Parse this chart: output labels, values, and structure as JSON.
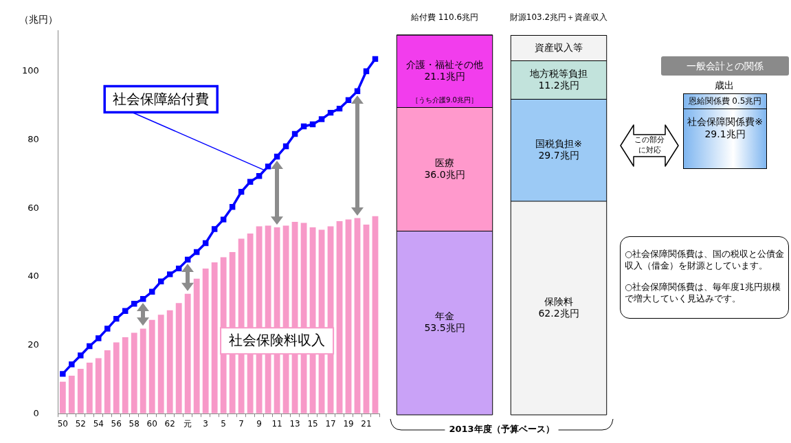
{
  "chart_data": [
    {
      "type": "bar",
      "ylabel": "（兆円）",
      "categories": [
        "50",
        null,
        "52",
        null,
        "54",
        null,
        "56",
        null,
        "58",
        null,
        "60",
        null,
        "62",
        null,
        "元",
        null,
        "3",
        null,
        "5",
        null,
        "7",
        null,
        "9",
        null,
        "11",
        null,
        "13",
        null,
        "15",
        null,
        "17",
        null,
        "19",
        null,
        "21",
        null
      ],
      "series": [
        {
          "name": "社会保険料収入",
          "type": "bar",
          "color": "#f799c8",
          "values": [
            9.3,
            11.1,
            13.1,
            14.9,
            16.2,
            18.5,
            20.8,
            22.3,
            23.6,
            24.8,
            27.4,
            28.9,
            30.2,
            32.3,
            35.0,
            39.4,
            42.4,
            44.2,
            45.7,
            47.2,
            51.1,
            52.6,
            54.7,
            54.9,
            54.4,
            54.9,
            56.0,
            55.7,
            54.4,
            53.7,
            54.7,
            56.2,
            56.7,
            57.1,
            55.2,
            57.7
          ]
        },
        {
          "name": "社会保障給付費",
          "type": "line",
          "color": "#0000ff",
          "values": [
            11.6,
            14.4,
            17.0,
            19.7,
            22.0,
            24.8,
            27.7,
            30.0,
            32.1,
            33.5,
            35.6,
            38.6,
            40.7,
            42.4,
            45.0,
            47.2,
            49.8,
            53.9,
            56.7,
            60.4,
            64.8,
            67.7,
            69.4,
            72.2,
            75.1,
            78.1,
            81.7,
            83.9,
            84.5,
            86.0,
            87.9,
            89.1,
            91.6,
            94.2,
            100.0,
            103.6
          ]
        }
      ],
      "ylim": [
        0,
        112
      ],
      "yticks": [
        0,
        20,
        40,
        60,
        80,
        100
      ],
      "marker": "square",
      "grid": false,
      "legend": false
    },
    {
      "type": "bar",
      "stacked": true,
      "categories": [
        "給付費 110.6兆円",
        "財源103.2兆円＋資産収入"
      ],
      "xlabel": "2013年度（予算ベース）",
      "series": [
        {
          "name": "年金",
          "color": "#c9a2f7",
          "values": [
            53.5,
            null
          ],
          "value_labels": [
            "53.5兆円",
            null
          ]
        },
        {
          "name": "医療",
          "color": "#ff99cc",
          "values": [
            36.0,
            null
          ],
          "value_labels": [
            "36.0兆円",
            null
          ]
        },
        {
          "name": "介護・福祉その他",
          "color": "#f23ded",
          "values": [
            21.1,
            null
          ],
          "value_labels": [
            "21.1兆円",
            null
          ]
        },
        {
          "name": "保険料",
          "color": "#f3f3f3",
          "values": [
            null,
            62.2
          ],
          "value_labels": [
            null,
            "62.2兆円"
          ]
        },
        {
          "name": "国税負担※",
          "color": "#9ccaf5",
          "values": [
            null,
            29.7
          ],
          "value_labels": [
            null,
            "29.7兆円"
          ]
        },
        {
          "name": "地方税等負担",
          "color": "#c2e3dc",
          "values": [
            null,
            11.2
          ],
          "value_labels": [
            null,
            "11.2兆円"
          ]
        },
        {
          "name": "資産収入等",
          "color": "#f3f3f3",
          "values": [
            null,
            7.4
          ],
          "value_labels": [
            null,
            null
          ]
        }
      ],
      "tick_labels": "x",
      "legend": false,
      "annotations": [
        "［うち介護9.0兆円］"
      ]
    },
    {
      "type": "other",
      "title": "一般会計との関係",
      "annotations": [
        "歳出",
        "恩給関係費 0.5兆円",
        "社会保障関係費※ 29.1兆円",
        "この部分に対応",
        "○社会保障関係費は、国の税収と公債金収入（借金）を財源としています。",
        "○社会保障関係費は、毎年度1兆円規模で増大していく見込みです。"
      ]
    }
  ]
}
